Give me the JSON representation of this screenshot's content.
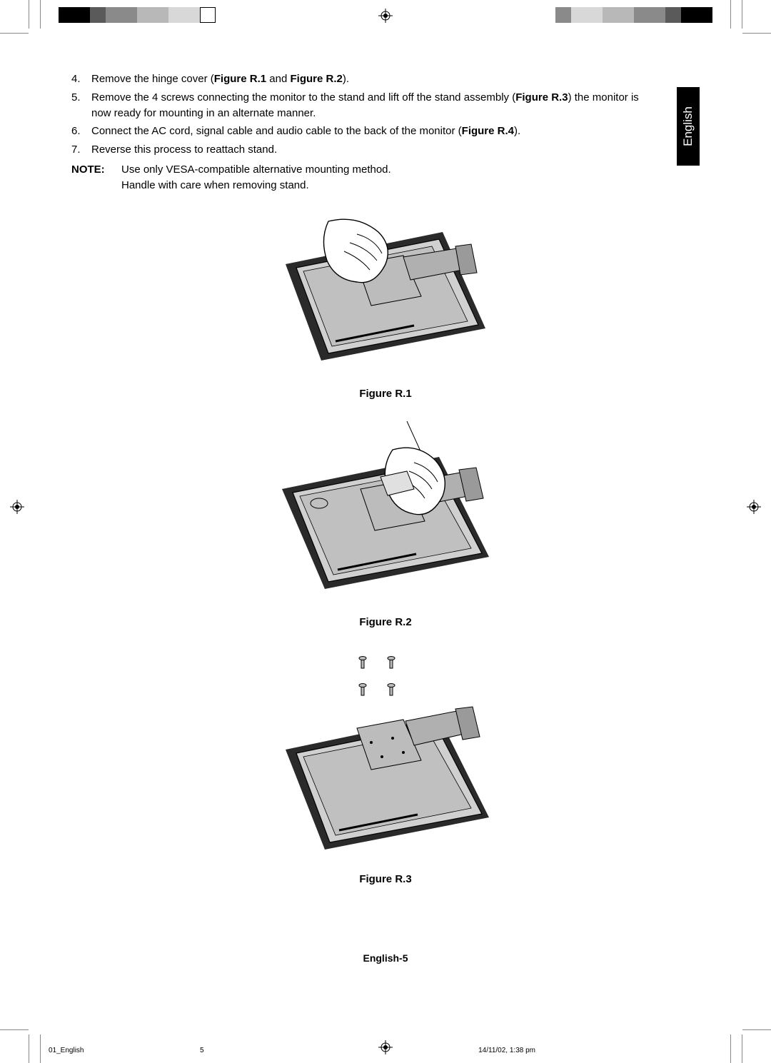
{
  "lang_tab": "English",
  "steps": [
    {
      "n": "4.",
      "pre": "Remove the hinge cover (",
      "b1": "Figure R.1",
      "mid": " and ",
      "b2": "Figure R.2",
      "post": ")."
    },
    {
      "n": "5.",
      "pre": "Remove the 4 screws connecting the monitor to the stand and lift off the stand assembly (",
      "b1": "Figure R.3",
      "mid": "",
      "b2": "",
      "post": ") the monitor is now ready for mounting in an alternate manner."
    },
    {
      "n": "6.",
      "pre": "Connect the AC cord, signal cable and audio cable to the back of the monitor (",
      "b1": "Figure R.4",
      "mid": "",
      "b2": "",
      "post": ")."
    },
    {
      "n": "7.",
      "pre": "Reverse this process to reattach stand.",
      "b1": "",
      "mid": "",
      "b2": "",
      "post": ""
    }
  ],
  "note": {
    "label": "NOTE:",
    "line1": "Use only VESA-compatible alternative mounting method.",
    "line2": "Handle with care when removing stand."
  },
  "figures": {
    "r1": "Figure R.1",
    "r2": "Figure R.2",
    "r3": "Figure R.3"
  },
  "footer_label": "English-5",
  "slug": {
    "file": "01_English",
    "page": "5",
    "date": "14/11/02, 1:38 pm"
  },
  "colors": {
    "black": "#000000",
    "dgray": "#5a5a5a",
    "mgray": "#8a8a8a",
    "lgray": "#b8b8b8",
    "vlgray": "#d8d8d8",
    "white": "#ffffff",
    "monitor_fill": "#d0d0d0",
    "monitor_stroke": "#000000",
    "pad_fill": "#2a2a2a"
  },
  "colorbar_left": [
    "#000000",
    "#000000",
    "#5a5a5a",
    "#8a8a8a",
    "#8a8a8a",
    "#b8b8b8",
    "#b8b8b8",
    "#d8d8d8",
    "#d8d8d8",
    "#ffffff"
  ],
  "colorbar_right": [
    "#000000",
    "#000000",
    "#5a5a5a",
    "#8a8a8a",
    "#8a8a8a",
    "#b8b8b8",
    "#b8b8b8",
    "#d8d8d8",
    "#d8d8d8",
    "#8a8a8a"
  ]
}
